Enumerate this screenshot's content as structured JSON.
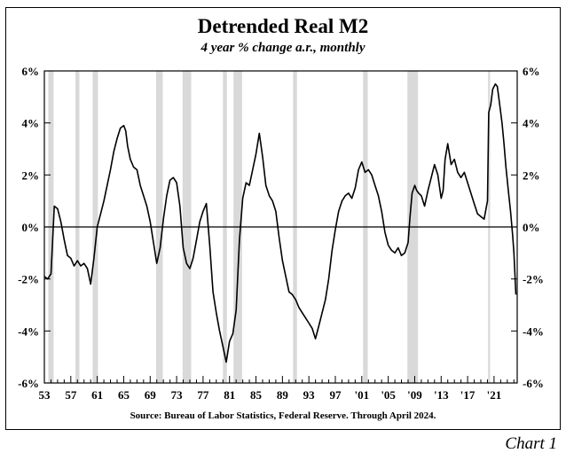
{
  "chart_data": {
    "type": "line",
    "title": "Detrended Real M2",
    "subtitle": "4 year % change a.r., monthly",
    "source": "Source: Bureau of Labor Statistics, Federal Reserve. Through April 2024.",
    "chart_number": "Chart 1",
    "xlim": [
      1953,
      2024.5
    ],
    "ylim": [
      -6,
      6
    ],
    "x_tick_values": [
      1953,
      1957,
      1961,
      1965,
      1969,
      1973,
      1977,
      1981,
      1985,
      1989,
      1993,
      1997,
      2001,
      2005,
      2009,
      2013,
      2017,
      2021
    ],
    "x_tick_labels": [
      "53",
      "57",
      "61",
      "65",
      "69",
      "73",
      "77",
      "81",
      "85",
      "89",
      "93",
      "97",
      "'01",
      "'05",
      "'09",
      "'13",
      "'17",
      "'21"
    ],
    "y_tick_values": [
      6,
      4,
      2,
      0,
      -2,
      -4,
      -6
    ],
    "y_tick_labels": [
      "6%",
      "4%",
      "2%",
      "0%",
      "-2%",
      "-4%",
      "-6%"
    ],
    "zero_line": true,
    "grid": false,
    "recession_color": "#d9d9d9",
    "line_color": "#000000",
    "recessions": [
      [
        1953.6,
        1954.4
      ],
      [
        1957.7,
        1958.3
      ],
      [
        1960.3,
        1961.1
      ],
      [
        1969.9,
        1970.9
      ],
      [
        1973.9,
        1975.2
      ],
      [
        1980.0,
        1980.6
      ],
      [
        1981.6,
        1982.9
      ],
      [
        1990.6,
        1991.2
      ],
      [
        2001.2,
        2001.9
      ],
      [
        2007.9,
        2009.5
      ],
      [
        2020.1,
        2020.4
      ]
    ],
    "series": [
      {
        "x": [
          1953.0,
          1953.5,
          1954.0,
          1954.5,
          1955.0,
          1955.5,
          1956.0,
          1956.5,
          1957.0,
          1957.5,
          1958.0,
          1958.5,
          1959.0,
          1959.5,
          1960.0,
          1960.5,
          1961.0,
          1961.5,
          1962.0,
          1962.5,
          1963.0,
          1963.5,
          1964.0,
          1964.5,
          1965.0,
          1965.3,
          1965.6,
          1966.0,
          1966.5,
          1967.0,
          1967.5,
          1968.0,
          1968.5,
          1969.0,
          1969.5,
          1970.0,
          1970.5,
          1971.0,
          1971.5,
          1972.0,
          1972.5,
          1973.0,
          1973.5,
          1974.0,
          1974.5,
          1975.0,
          1975.5,
          1976.0,
          1976.5,
          1977.0,
          1977.5,
          1978.0,
          1978.5,
          1979.0,
          1979.5,
          1980.0,
          1980.5,
          1981.0,
          1981.5,
          1982.0,
          1982.5,
          1983.0,
          1983.5,
          1984.0,
          1984.5,
          1985.0,
          1985.5,
          1986.0,
          1986.5,
          1987.0,
          1987.5,
          1988.0,
          1988.5,
          1989.0,
          1989.5,
          1990.0,
          1990.5,
          1991.0,
          1991.5,
          1992.0,
          1992.5,
          1993.0,
          1993.5,
          1994.0,
          1994.5,
          1995.0,
          1995.5,
          1996.0,
          1996.5,
          1997.0,
          1997.5,
          1998.0,
          1998.5,
          1999.0,
          1999.5,
          2000.0,
          2000.5,
          2001.0,
          2001.5,
          2002.0,
          2002.5,
          2003.0,
          2003.5,
          2004.0,
          2004.5,
          2005.0,
          2005.5,
          2006.0,
          2006.5,
          2007.0,
          2007.5,
          2008.0,
          2008.3,
          2008.6,
          2009.0,
          2009.3,
          2009.6,
          2010.0,
          2010.5,
          2011.0,
          2011.5,
          2012.0,
          2012.5,
          2013.0,
          2013.3,
          2013.6,
          2014.0,
          2014.5,
          2015.0,
          2015.5,
          2016.0,
          2016.5,
          2017.0,
          2017.5,
          2018.0,
          2018.5,
          2019.0,
          2019.5,
          2020.0,
          2020.2,
          2020.5,
          2020.8,
          2021.2,
          2021.5,
          2021.8,
          2022.2,
          2022.5,
          2022.8,
          2023.2,
          2023.5,
          2023.8,
          2024.0,
          2024.3
        ],
        "values": [
          -1.9,
          -2.0,
          -1.8,
          0.8,
          0.7,
          0.2,
          -0.5,
          -1.1,
          -1.2,
          -1.5,
          -1.3,
          -1.5,
          -1.4,
          -1.6,
          -2.2,
          -1.2,
          0.0,
          0.5,
          1.0,
          1.6,
          2.2,
          2.9,
          3.4,
          3.8,
          3.9,
          3.7,
          3.1,
          2.6,
          2.3,
          2.2,
          1.6,
          1.2,
          0.8,
          0.2,
          -0.6,
          -1.4,
          -0.8,
          0.3,
          1.2,
          1.8,
          1.9,
          1.7,
          0.8,
          -0.8,
          -1.4,
          -1.6,
          -1.2,
          -0.5,
          0.2,
          0.6,
          0.9,
          -0.7,
          -2.5,
          -3.3,
          -4.0,
          -4.6,
          -5.2,
          -4.4,
          -4.1,
          -3.2,
          -0.5,
          1.1,
          1.7,
          1.6,
          2.2,
          2.8,
          3.6,
          2.7,
          1.6,
          1.2,
          1.0,
          0.6,
          -0.4,
          -1.3,
          -1.9,
          -2.5,
          -2.6,
          -2.8,
          -3.1,
          -3.3,
          -3.5,
          -3.7,
          -3.9,
          -4.3,
          -3.8,
          -3.3,
          -2.8,
          -2.0,
          -0.9,
          -0.1,
          0.6,
          1.0,
          1.2,
          1.3,
          1.1,
          1.5,
          2.2,
          2.5,
          2.1,
          2.2,
          2.0,
          1.6,
          1.2,
          0.6,
          -0.2,
          -0.7,
          -0.9,
          -1.0,
          -0.8,
          -1.1,
          -1.0,
          -0.6,
          0.4,
          1.3,
          1.6,
          1.4,
          1.3,
          1.2,
          0.8,
          1.4,
          1.9,
          2.4,
          2.0,
          1.1,
          1.4,
          2.6,
          3.2,
          2.4,
          2.6,
          2.1,
          1.9,
          2.1,
          1.7,
          1.3,
          0.9,
          0.5,
          0.4,
          0.3,
          1.0,
          4.4,
          4.7,
          5.3,
          5.5,
          5.4,
          4.8,
          4.0,
          3.2,
          2.3,
          1.3,
          0.6,
          -0.3,
          -1.0,
          -2.6
        ]
      }
    ]
  }
}
